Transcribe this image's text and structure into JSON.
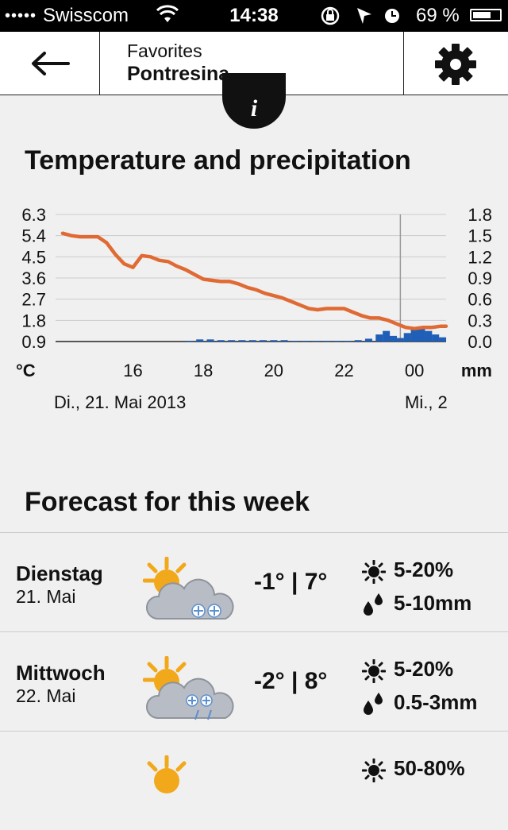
{
  "status_bar": {
    "signal": "•••••",
    "carrier": "Swisscom",
    "time": "14:38",
    "battery": "69 %",
    "battery_level": 0.69
  },
  "nav": {
    "back_icon": "back-arrow-icon",
    "subtitle": "Favorites",
    "title": "Pontresina",
    "settings_icon": "gear-icon"
  },
  "info_button": {
    "label": "i"
  },
  "chart_section": {
    "title": "Temperature and precipitation"
  },
  "chart_data": {
    "type": "line",
    "title": "Temperature and precipitation",
    "y_left_ticks": [
      "6.3",
      "5.4",
      "4.5",
      "3.6",
      "2.7",
      "1.8",
      "0.9"
    ],
    "y_right_ticks": [
      "1.8",
      "1.5",
      "1.2",
      "0.9",
      "0.6",
      "0.3",
      "0.0"
    ],
    "y_left_label": "°C",
    "y_right_label": "mm",
    "x_tick_labels": [
      "16",
      "18",
      "20",
      "22",
      "00"
    ],
    "date_labels": [
      "Di., 21. Mai 2013",
      "Mi., 2"
    ],
    "ylim_left": [
      0.9,
      6.3
    ],
    "ylim_right": [
      0,
      1.8
    ],
    "xlim_hours": [
      13.8,
      24.9
    ],
    "now_marker_hour": 23.6,
    "grid": true,
    "colors": {
      "temperature": "#e06a33",
      "precipitation": "#1f5fb8",
      "grid": "#cccccc"
    },
    "series": [
      {
        "name": "Temperature",
        "unit": "°C",
        "x": [
          14.0,
          14.25,
          14.5,
          14.75,
          15.0,
          15.25,
          15.5,
          15.75,
          16.0,
          16.25,
          16.5,
          16.75,
          17.0,
          17.25,
          17.5,
          17.75,
          18.0,
          18.25,
          18.5,
          18.75,
          19.0,
          19.25,
          19.5,
          19.75,
          20.0,
          20.25,
          20.5,
          20.75,
          21.0,
          21.25,
          21.5,
          21.75,
          22.0,
          22.25,
          22.5,
          22.75,
          23.0,
          23.25,
          23.5,
          23.75,
          24.0,
          24.25,
          24.5,
          24.75,
          24.9
        ],
        "y": [
          5.5,
          5.4,
          5.35,
          5.35,
          5.35,
          5.1,
          4.6,
          4.2,
          4.05,
          4.55,
          4.5,
          4.35,
          4.3,
          4.1,
          3.95,
          3.75,
          3.55,
          3.5,
          3.45,
          3.45,
          3.35,
          3.2,
          3.1,
          2.95,
          2.85,
          2.75,
          2.6,
          2.45,
          2.3,
          2.25,
          2.3,
          2.3,
          2.3,
          2.15,
          2.0,
          1.9,
          1.9,
          1.8,
          1.65,
          1.5,
          1.45,
          1.5,
          1.5,
          1.55,
          1.55
        ]
      },
      {
        "name": "Precipitation",
        "unit": "mm",
        "type": "bar",
        "x": [
          17.6,
          17.9,
          18.2,
          18.5,
          18.8,
          19.1,
          19.4,
          19.7,
          20.0,
          20.3,
          20.6,
          20.9,
          21.2,
          21.5,
          21.8,
          22.1,
          22.4,
          22.7,
          23.0,
          23.2,
          23.4,
          23.6,
          23.8,
          24.0,
          24.2,
          24.4,
          24.6,
          24.8
        ],
        "values": [
          0.01,
          0.03,
          0.03,
          0.02,
          0.02,
          0.02,
          0.02,
          0.02,
          0.02,
          0.02,
          0.01,
          0.01,
          0.01,
          0.01,
          0.01,
          0.01,
          0.02,
          0.04,
          0.1,
          0.15,
          0.08,
          0.05,
          0.12,
          0.18,
          0.2,
          0.15,
          0.1,
          0.06
        ]
      }
    ]
  },
  "forecast": {
    "title": "Forecast for this week",
    "days": [
      {
        "day": "Dienstag",
        "date": "21. Mai",
        "weather_icon": "sun-cloud-snow-icon",
        "temp": "-1° | 7°",
        "sun": "5-20%",
        "rain": "5-10mm"
      },
      {
        "day": "Mittwoch",
        "date": "22. Mai",
        "weather_icon": "sun-cloud-snow-rain-icon",
        "temp": "-2° | 8°",
        "sun": "5-20%",
        "rain": "0.5-3mm"
      },
      {
        "day": "",
        "date": "",
        "weather_icon": "sun-cloud-icon",
        "temp": "",
        "sun": "50-80%",
        "rain": ""
      }
    ]
  }
}
